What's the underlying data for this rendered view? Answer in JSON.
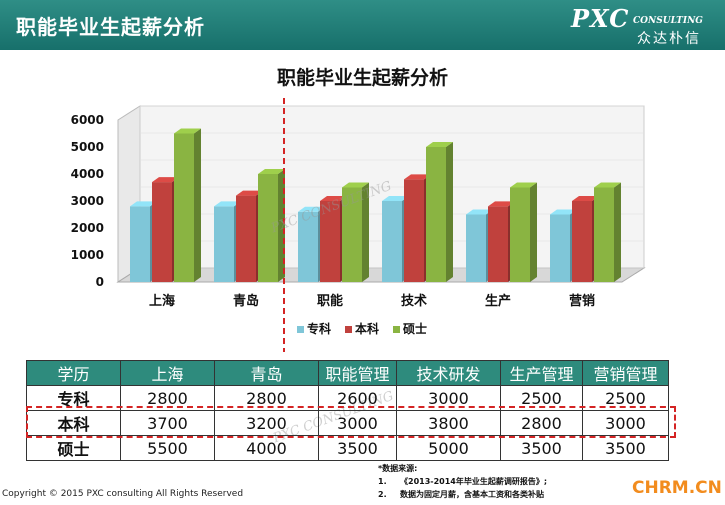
{
  "header": {
    "title": "职能毕业生起薪分析",
    "logo_main": "PXC",
    "logo_sub": "CONSULTING",
    "logo_cn": "众达朴信"
  },
  "chart_data": {
    "type": "bar",
    "title": "职能毕业生起薪分析",
    "categories": [
      "上海",
      "青岛",
      "职能",
      "技术",
      "生产",
      "营销"
    ],
    "series": [
      {
        "name": "专科",
        "values": [
          2800,
          2800,
          2600,
          3000,
          2500,
          2500
        ]
      },
      {
        "name": "本科",
        "values": [
          3700,
          3200,
          3000,
          3800,
          2800,
          3000
        ]
      },
      {
        "name": "硕士",
        "values": [
          5500,
          4000,
          3500,
          5000,
          3500,
          3500
        ]
      }
    ],
    "ylim": [
      0,
      6000
    ],
    "yticks": [
      0,
      1000,
      2000,
      3000,
      4000,
      5000,
      6000
    ],
    "legend_position": "bottom",
    "colors": {
      "专科": "#7fc6d8",
      "本科": "#c0413d",
      "硕士": "#8ab442"
    },
    "grid": false
  },
  "table": {
    "headers": [
      "学历",
      "上海",
      "青岛",
      "职能管理",
      "技术研发",
      "生产管理",
      "营销管理"
    ],
    "rows": [
      [
        "专科",
        "2800",
        "2800",
        "2600",
        "3000",
        "2500",
        "2500"
      ],
      [
        "本科",
        "3700",
        "3200",
        "3000",
        "3800",
        "2800",
        "3000"
      ],
      [
        "硕士",
        "5500",
        "4000",
        "3500",
        "5000",
        "3500",
        "3500"
      ]
    ]
  },
  "source": {
    "label": "*数据来源:",
    "items": [
      {
        "num": "1.",
        "text": "《2013-2014年毕业生起薪调研报告》;"
      },
      {
        "num": "2.",
        "text": "数据为固定月薪，含基本工资和各类补贴"
      }
    ]
  },
  "footer": {
    "copyright": "Copyright © 2015  PXC consulting All Rights Reserved",
    "site": "CHRM.CN"
  },
  "watermarks": [
    "PXC CONSULTING",
    "众达朴信"
  ]
}
